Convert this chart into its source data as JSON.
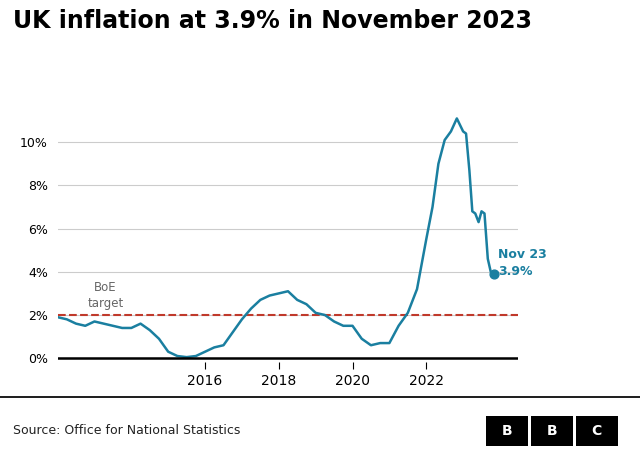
{
  "title": "UK inflation at 3.9% in November 2023",
  "source": "Source: Office for National Statistics",
  "boe_target": 2.0,
  "boe_label": "BoE\ntarget",
  "end_label": "Nov 23\n3.9%",
  "line_color": "#1a7fa0",
  "boe_color": "#c0392b",
  "dot_color": "#1a7fa0",
  "title_fontsize": 17,
  "source_fontsize": 9,
  "yticks": [
    0,
    2,
    4,
    6,
    8,
    10
  ],
  "ylim": [
    -0.5,
    12
  ],
  "data": [
    [
      2012.0,
      1.9
    ],
    [
      2012.25,
      1.8
    ],
    [
      2012.5,
      1.6
    ],
    [
      2012.75,
      1.5
    ],
    [
      2013.0,
      1.7
    ],
    [
      2013.25,
      1.6
    ],
    [
      2013.5,
      1.5
    ],
    [
      2013.75,
      1.4
    ],
    [
      2014.0,
      1.4
    ],
    [
      2014.25,
      1.6
    ],
    [
      2014.5,
      1.3
    ],
    [
      2014.75,
      0.9
    ],
    [
      2015.0,
      0.3
    ],
    [
      2015.25,
      0.1
    ],
    [
      2015.5,
      0.05
    ],
    [
      2015.75,
      0.1
    ],
    [
      2016.0,
      0.3
    ],
    [
      2016.25,
      0.5
    ],
    [
      2016.5,
      0.6
    ],
    [
      2016.75,
      1.2
    ],
    [
      2017.0,
      1.8
    ],
    [
      2017.25,
      2.3
    ],
    [
      2017.5,
      2.7
    ],
    [
      2017.75,
      2.9
    ],
    [
      2018.0,
      3.0
    ],
    [
      2018.25,
      3.1
    ],
    [
      2018.5,
      2.7
    ],
    [
      2018.75,
      2.5
    ],
    [
      2019.0,
      2.1
    ],
    [
      2019.25,
      2.0
    ],
    [
      2019.5,
      1.7
    ],
    [
      2019.75,
      1.5
    ],
    [
      2020.0,
      1.5
    ],
    [
      2020.25,
      0.9
    ],
    [
      2020.5,
      0.6
    ],
    [
      2020.75,
      0.7
    ],
    [
      2021.0,
      0.7
    ],
    [
      2021.25,
      1.5
    ],
    [
      2021.5,
      2.1
    ],
    [
      2021.75,
      3.2
    ],
    [
      2022.0,
      5.5
    ],
    [
      2022.17,
      7.0
    ],
    [
      2022.33,
      9.0
    ],
    [
      2022.5,
      10.1
    ],
    [
      2022.67,
      10.5
    ],
    [
      2022.83,
      11.1
    ],
    [
      2023.0,
      10.5
    ],
    [
      2023.08,
      10.4
    ],
    [
      2023.17,
      8.7
    ],
    [
      2023.25,
      6.8
    ],
    [
      2023.33,
      6.7
    ],
    [
      2023.42,
      6.3
    ],
    [
      2023.5,
      6.8
    ],
    [
      2023.58,
      6.7
    ],
    [
      2023.67,
      4.6
    ],
    [
      2023.75,
      4.0
    ],
    [
      2023.83,
      3.9
    ]
  ],
  "xticks": [
    2016,
    2018,
    2020,
    2022
  ],
  "xlim": [
    2012.0,
    2024.5
  ],
  "background_color": "#ffffff"
}
